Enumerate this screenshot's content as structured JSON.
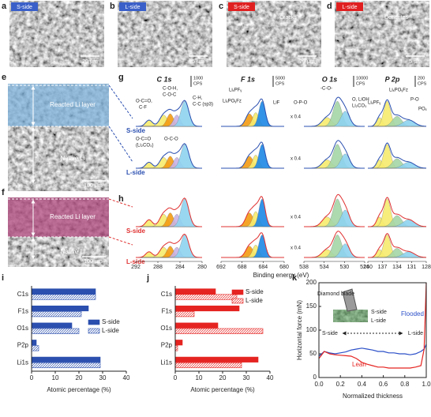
{
  "panel_letters": [
    "a",
    "b",
    "c",
    "d",
    "e",
    "f",
    "g",
    "h",
    "i",
    "j",
    "k"
  ],
  "micrographs": [
    {
      "label": "S-side",
      "label_color": "#3a5fc8",
      "scale": "20 μm"
    },
    {
      "label": "L-side",
      "label_color": "#3a5fc8",
      "scale": "5 μm"
    },
    {
      "label": "S-side",
      "label_color": "#e02020",
      "scale": "20 μm",
      "annotation": "Cracks"
    },
    {
      "label": "L-side",
      "label_color": "#e02020",
      "scale": "5 μm",
      "annotation": "Dendrites"
    }
  ],
  "cross_sections": [
    {
      "top_layer": "Reacted Li layer",
      "bottom_layer": "Native Li",
      "scale": "100 μm",
      "layer_color": "#7fb3dc"
    },
    {
      "top_layer": "Reacted Li layer",
      "bottom_layer": "Native Li",
      "scale": "100 μm",
      "layer_color": "#b0487e"
    }
  ],
  "xps": {
    "x_label": "Binding energy (eV)",
    "factor": "x 0.4",
    "regions": [
      {
        "title": "C 1s",
        "scale": "1000",
        "scale_unit": "CPS",
        "ticks": [
          292,
          288,
          284,
          280
        ]
      },
      {
        "title": "F 1s",
        "scale": "5000",
        "scale_unit": "CPS",
        "ticks": [
          692,
          688,
          684,
          680
        ]
      },
      {
        "title": "O 1s",
        "scale": "10000",
        "scale_unit": "CPS",
        "ticks": [
          538,
          534,
          530,
          526
        ]
      },
      {
        "title": "P 2p",
        "scale": "200",
        "scale_unit": "CPS",
        "ticks": [
          140,
          137,
          134,
          131,
          128
        ]
      }
    ],
    "rows": [
      {
        "color": "#2a4fb0",
        "side_labels": [
          "S-side",
          "L-side"
        ]
      },
      {
        "color": "#e03030",
        "side_labels": [
          "S-side",
          "L-side"
        ]
      }
    ],
    "annotations": [
      "O-C=O,",
      "C-F",
      "C-O-H,",
      "C-O-C",
      "C-H,",
      "C-C (sp3)",
      "LiₓPFᵧ",
      "LiₓPOᵧFz",
      "LiF",
      "O-P-O",
      "-C-O-",
      "O, LiOH",
      "Li₂CO₃",
      "LiₓPFᵧ",
      "LiₓPOᵧFz",
      "P-O",
      "POₓ",
      "O-C=O",
      "(Li₂CO₃)",
      "O-C-O"
    ]
  },
  "chart_data": [
    {
      "type": "hbar",
      "x_label": "Atomic percentage (%)",
      "categories": [
        "C1s",
        "F1s",
        "O1s",
        "P2p",
        "Li1s"
      ],
      "series": [
        {
          "name": "S-side",
          "color": "#2b4fae",
          "pattern": "solid",
          "values": [
            27,
            24,
            17,
            2,
            29
          ]
        },
        {
          "name": "L-side",
          "color": "#2b4fae",
          "pattern": "hatch",
          "values": [
            27,
            21,
            20,
            3,
            29
          ]
        }
      ],
      "xlim": [
        0,
        40
      ],
      "xticks": [
        0,
        10,
        20,
        30,
        40
      ],
      "legend": "center right"
    },
    {
      "type": "hbar",
      "x_label": "Atomic percentage (%)",
      "categories": [
        "C1s",
        "F1s",
        "O1s",
        "P2p",
        "Li1s"
      ],
      "series": [
        {
          "name": "S-side",
          "color": "#e52421",
          "pattern": "solid",
          "values": [
            17,
            27,
            18,
            3,
            35
          ]
        },
        {
          "name": "L-side",
          "color": "#e52421",
          "pattern": "hatch",
          "values": [
            26,
            8,
            37,
            1,
            28
          ]
        }
      ],
      "xlim": [
        0,
        40
      ],
      "xticks": [
        0,
        10,
        20,
        30,
        40
      ],
      "legend": "upper right"
    },
    {
      "type": "line",
      "x_label": "Normalized thickness",
      "y_label": "Horizontal force (mN)",
      "x": [
        0,
        0.05,
        0.1,
        0.15,
        0.2,
        0.25,
        0.3,
        0.35,
        0.4,
        0.45,
        0.5,
        0.55,
        0.6,
        0.65,
        0.7,
        0.75,
        0.8,
        0.85,
        0.9,
        0.95,
        0.98,
        1.0
      ],
      "series": [
        {
          "name": "Flooded",
          "color": "#2b4fc8",
          "values": [
            45,
            55,
            52,
            50,
            52,
            54,
            58,
            60,
            62,
            60,
            58,
            55,
            55,
            52,
            52,
            50,
            50,
            48,
            50,
            55,
            60,
            70
          ]
        },
        {
          "name": "Lean",
          "color": "#e52421",
          "values": [
            40,
            55,
            50,
            48,
            47,
            46,
            45,
            40,
            32,
            28,
            25,
            22,
            22,
            20,
            20,
            20,
            20,
            20,
            22,
            25,
            60,
            200
          ]
        }
      ],
      "xlim": [
        0,
        1
      ],
      "ylim": [
        0,
        200
      ],
      "xticks": [
        {
          "value": 0,
          "label": "0.0"
        },
        0.2,
        0.4,
        0.6,
        0.8,
        {
          "value": 1,
          "label": "1.0"
        }
      ],
      "yticks": [
        0,
        50,
        100,
        150,
        200
      ],
      "annotations": [
        "Diamond blade",
        "S-side",
        "L-side",
        "S-side",
        "L-side"
      ]
    }
  ]
}
